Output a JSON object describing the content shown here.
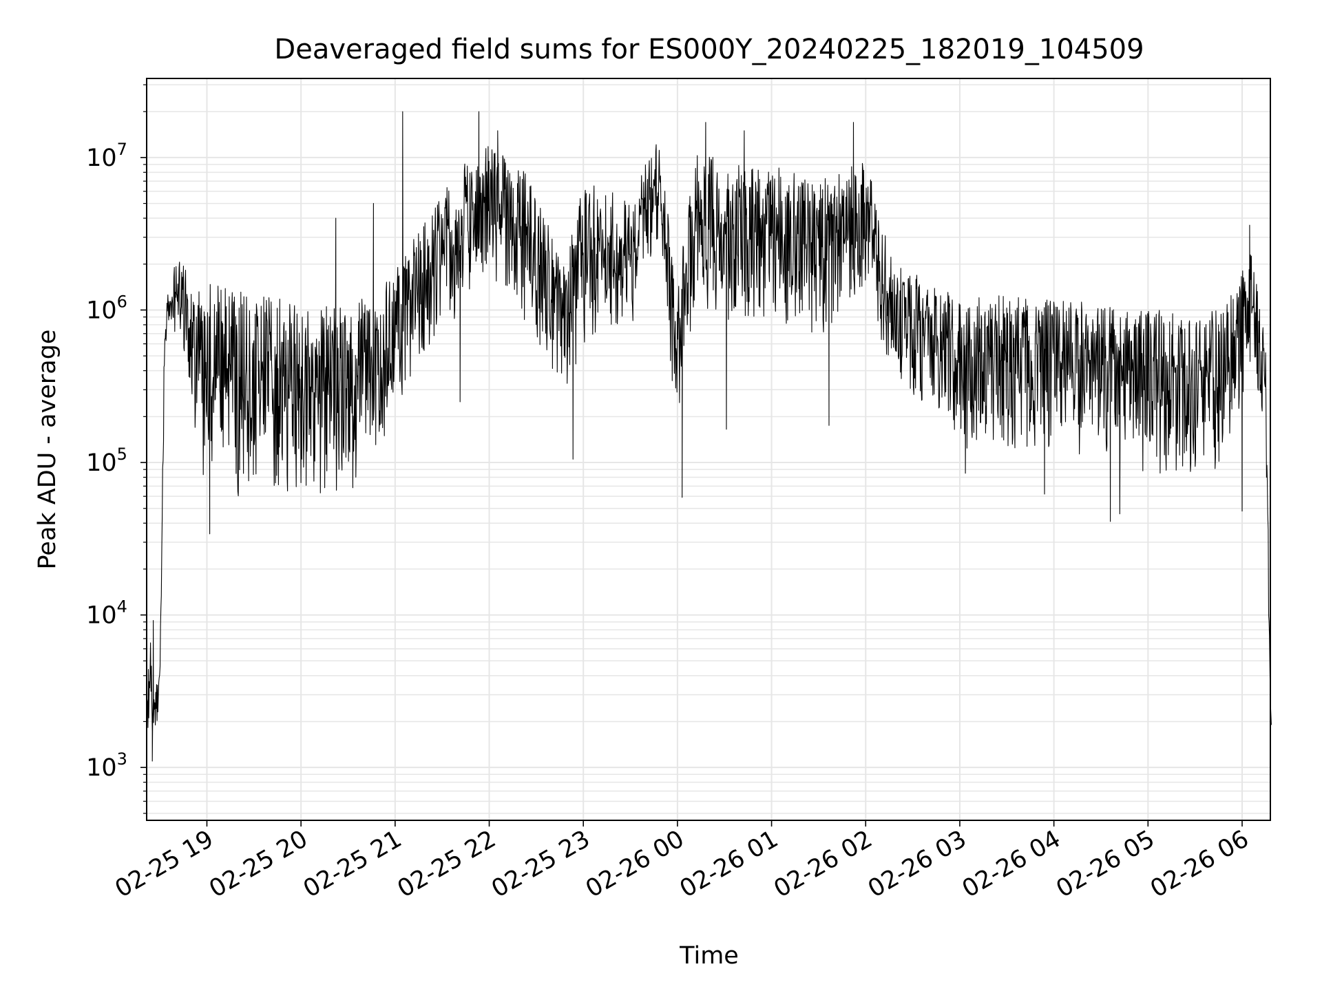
{
  "chart_data": {
    "type": "line",
    "title": "Deaveraged field sums for ES000Y_20240225_182019_104509",
    "xlabel": "Time",
    "ylabel": "Peak ADU - average",
    "yscale": "log",
    "ylim": [
      450,
      33000000
    ],
    "xlim_hours_from_0225_1800": [
      0.36,
      12.3
    ],
    "x_ticks": [
      {
        "hours": 1,
        "label": "02-25 19"
      },
      {
        "hours": 2,
        "label": "02-25 20"
      },
      {
        "hours": 3,
        "label": "02-25 21"
      },
      {
        "hours": 4,
        "label": "02-25 22"
      },
      {
        "hours": 5,
        "label": "02-25 23"
      },
      {
        "hours": 6,
        "label": "02-26 00"
      },
      {
        "hours": 7,
        "label": "02-26 01"
      },
      {
        "hours": 8,
        "label": "02-26 02"
      },
      {
        "hours": 9,
        "label": "02-26 03"
      },
      {
        "hours": 10,
        "label": "02-26 04"
      },
      {
        "hours": 11,
        "label": "02-26 05"
      },
      {
        "hours": 12,
        "label": "02-26 06"
      }
    ],
    "y_ticks": [
      {
        "value": 1000,
        "base": "10",
        "exp": "3"
      },
      {
        "value": 10000,
        "base": "10",
        "exp": "4"
      },
      {
        "value": 100000,
        "base": "10",
        "exp": "5"
      },
      {
        "value": 1000000,
        "base": "10",
        "exp": "6"
      },
      {
        "value": 10000000,
        "base": "10",
        "exp": "7"
      }
    ],
    "grid": true,
    "line_color": "#000000",
    "grid_color": "#e6e6e6",
    "series": [
      {
        "name": "deaveraged field sum",
        "envelope": [
          {
            "h": 0.36,
            "lo": 2000,
            "hi": 2500
          },
          {
            "h": 0.4,
            "lo": 1100,
            "hi": 9000
          },
          {
            "h": 0.45,
            "lo": 1800,
            "hi": 3000
          },
          {
            "h": 0.5,
            "lo": 2000,
            "hi": 5000
          },
          {
            "h": 0.55,
            "lo": 300000,
            "hi": 1000000
          },
          {
            "h": 0.6,
            "lo": 700000,
            "hi": 1500000
          },
          {
            "h": 0.7,
            "lo": 700000,
            "hi": 2400000
          },
          {
            "h": 0.85,
            "lo": 200000,
            "hi": 1500000
          },
          {
            "h": 1.0,
            "lo": 60000,
            "hi": 1500000
          },
          {
            "h": 1.5,
            "lo": 60000,
            "hi": 1300000
          },
          {
            "h": 2.0,
            "lo": 60000,
            "hi": 1100000
          },
          {
            "h": 2.5,
            "lo": 60000,
            "hi": 1100000
          },
          {
            "h": 2.9,
            "lo": 150000,
            "hi": 1500000
          },
          {
            "h": 3.2,
            "lo": 400000,
            "hi": 3000000
          },
          {
            "h": 3.6,
            "lo": 800000,
            "hi": 8000000
          },
          {
            "h": 4.0,
            "lo": 1500000,
            "hi": 12000000
          },
          {
            "h": 4.4,
            "lo": 800000,
            "hi": 8000000
          },
          {
            "h": 4.8,
            "lo": 250000,
            "hi": 2000000
          },
          {
            "h": 5.0,
            "lo": 600000,
            "hi": 7000000
          },
          {
            "h": 5.5,
            "lo": 700000,
            "hi": 6000000
          },
          {
            "h": 5.8,
            "lo": 3000000,
            "hi": 13000000
          },
          {
            "h": 6.0,
            "lo": 100000,
            "hi": 1500000
          },
          {
            "h": 6.2,
            "lo": 1000000,
            "hi": 12000000
          },
          {
            "h": 6.5,
            "lo": 700000,
            "hi": 9000000
          },
          {
            "h": 7.0,
            "lo": 800000,
            "hi": 9000000
          },
          {
            "h": 7.5,
            "lo": 600000,
            "hi": 7000000
          },
          {
            "h": 8.0,
            "lo": 1500000,
            "hi": 10000000
          },
          {
            "h": 8.3,
            "lo": 300000,
            "hi": 2000000
          },
          {
            "h": 9.0,
            "lo": 120000,
            "hi": 1300000
          },
          {
            "h": 10.0,
            "lo": 120000,
            "hi": 1200000
          },
          {
            "h": 11.0,
            "lo": 80000,
            "hi": 1000000
          },
          {
            "h": 11.8,
            "lo": 80000,
            "hi": 1000000
          },
          {
            "h": 12.1,
            "lo": 400000,
            "hi": 2500000
          },
          {
            "h": 12.25,
            "lo": 150000,
            "hi": 600000
          },
          {
            "h": 12.3,
            "lo": 2000,
            "hi": 6000
          }
        ],
        "spikes": [
          {
            "h": 0.43,
            "v": 9200
          },
          {
            "h": 0.42,
            "v": 1100
          },
          {
            "h": 1.03,
            "v": 34000
          },
          {
            "h": 2.37,
            "v": 4000000
          },
          {
            "h": 2.77,
            "v": 5000000
          },
          {
            "h": 3.08,
            "v": 20000000
          },
          {
            "h": 3.69,
            "v": 250000
          },
          {
            "h": 3.89,
            "v": 20000000
          },
          {
            "h": 4.09,
            "v": 15000000
          },
          {
            "h": 4.89,
            "v": 105000
          },
          {
            "h": 6.05,
            "v": 59000
          },
          {
            "h": 6.3,
            "v": 17000000
          },
          {
            "h": 6.52,
            "v": 165000
          },
          {
            "h": 6.71,
            "v": 15000000
          },
          {
            "h": 7.61,
            "v": 175000
          },
          {
            "h": 7.87,
            "v": 17000000
          },
          {
            "h": 9.06,
            "v": 85000
          },
          {
            "h": 9.9,
            "v": 62000
          },
          {
            "h": 10.6,
            "v": 41000
          },
          {
            "h": 10.7,
            "v": 46000
          },
          {
            "h": 12.0,
            "v": 48000
          },
          {
            "h": 12.08,
            "v": 3600000
          },
          {
            "h": 12.31,
            "v": 1900
          }
        ]
      }
    ]
  }
}
